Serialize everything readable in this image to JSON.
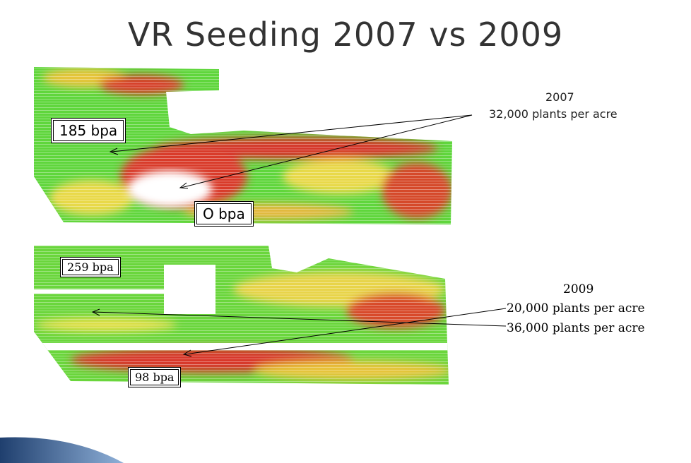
{
  "title": "VR Seeding 2007 vs 2009",
  "labels": [
    "185 bpa",
    "O bpa",
    "259 bpa",
    "98 bpa"
  ],
  "annotations": {
    "year_2007": "2007",
    "rate_2007": "32,000 plants per acre",
    "year_2009": "2009",
    "rate_2009_low": "20,000 plants per acre",
    "rate_2009_high": "36,000 plants per acre"
  }
}
